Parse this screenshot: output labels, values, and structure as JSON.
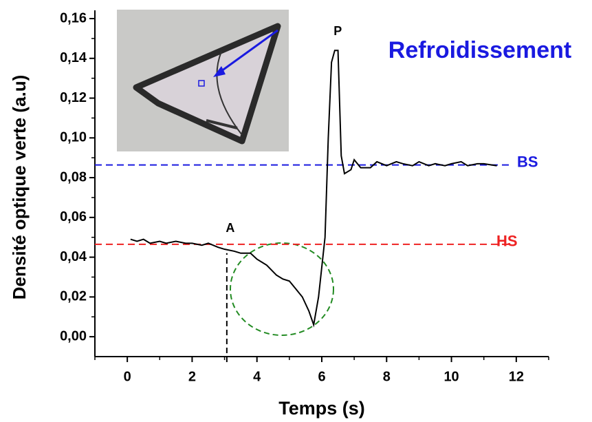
{
  "chart_data": {
    "type": "line",
    "title": "Refroidissement",
    "title_color": "#1a1ae0",
    "x_label": "Temps (s)",
    "y_label": "Densité optique verte (a.u)",
    "xlim": [
      -1,
      13
    ],
    "ylim": [
      -0.01,
      0.16
    ],
    "xticks": [
      0,
      2,
      4,
      6,
      8,
      10,
      12
    ],
    "minor_xticks": [
      -1,
      1,
      3,
      5,
      7,
      9,
      11,
      13
    ],
    "yticks": [
      {
        "value": 0,
        "label": "0,00"
      },
      {
        "value": 0.02,
        "label": "0,02"
      },
      {
        "value": 0.04,
        "label": "0,04"
      },
      {
        "value": 0.06,
        "label": "0,06"
      },
      {
        "value": 0.08,
        "label": "0,08"
      },
      {
        "value": 0.1,
        "label": "0,10"
      },
      {
        "value": 0.12,
        "label": "0,12"
      },
      {
        "value": 0.14,
        "label": "0,14"
      },
      {
        "value": 0.16,
        "label": "0,16"
      }
    ],
    "minor_yticks": [
      0.01,
      0.03,
      0.05,
      0.07,
      0.09,
      0.11,
      0.13,
      0.15
    ],
    "series": [
      {
        "color": "#000000",
        "x": [
          0.1,
          0.3,
          0.5,
          0.7,
          1.0,
          1.2,
          1.5,
          1.8,
          2.0,
          2.3,
          2.5,
          2.8,
          3.0,
          3.3,
          3.5,
          3.8,
          4.0,
          4.3,
          4.6,
          4.8,
          5.0,
          5.2,
          5.4,
          5.6,
          5.75,
          5.9,
          6.1,
          6.2,
          6.3,
          6.4,
          6.5,
          6.6,
          6.7,
          6.9,
          7.0,
          7.2,
          7.5,
          7.7,
          8.0,
          8.3,
          8.5,
          8.8,
          9.0,
          9.3,
          9.5,
          9.8,
          10.0,
          10.3,
          10.5,
          10.8,
          11.0,
          11.4
        ],
        "values": [
          0.049,
          0.048,
          0.049,
          0.047,
          0.048,
          0.047,
          0.048,
          0.047,
          0.047,
          0.046,
          0.047,
          0.045,
          0.044,
          0.043,
          0.042,
          0.042,
          0.039,
          0.036,
          0.031,
          0.029,
          0.028,
          0.024,
          0.02,
          0.013,
          0.006,
          0.02,
          0.05,
          0.1,
          0.138,
          0.144,
          0.144,
          0.091,
          0.082,
          0.084,
          0.089,
          0.085,
          0.085,
          0.088,
          0.086,
          0.088,
          0.087,
          0.086,
          0.088,
          0.086,
          0.087,
          0.086,
          0.087,
          0.088,
          0.086,
          0.087,
          0.087,
          0.086
        ]
      }
    ],
    "reference_lines": [
      {
        "label": "BS",
        "value": 0.0864,
        "color": "#1a1ae0"
      },
      {
        "label": "HS",
        "value": 0.0465,
        "color": "#ee2222"
      }
    ],
    "vertical_marker": {
      "label": "A",
      "x": 3.07,
      "y_end": 0.042
    },
    "peak_annotation": {
      "text": "P",
      "x": 6.45,
      "y": 0.144
    }
  }
}
